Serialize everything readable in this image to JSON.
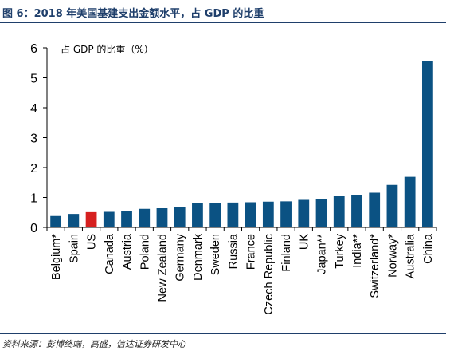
{
  "figure": {
    "title": "图 6：2018 年美国基建支出金额水平，占 GDP 的比重",
    "source": "资料来源：彭博终端，高盛，信达证券研发中心"
  },
  "chart_data": {
    "type": "bar",
    "title": "",
    "xlabel": "",
    "ylabel": "",
    "annotation": "占 GDP 的比重（%）",
    "categories": [
      "Belgium*",
      "Spain",
      "US",
      "Canada",
      "Austria",
      "Poland",
      "New Zealand",
      "Germany",
      "Denmark",
      "Sweden",
      "Russia",
      "France",
      "Czech Republic",
      "Finland",
      "UK",
      "Japan**",
      "Turkey",
      "India**",
      "Switzerland*",
      "Norway*",
      "Australia",
      "China"
    ],
    "values": [
      0.38,
      0.45,
      0.51,
      0.52,
      0.55,
      0.62,
      0.64,
      0.67,
      0.8,
      0.82,
      0.83,
      0.84,
      0.86,
      0.87,
      0.92,
      0.96,
      1.04,
      1.07,
      1.16,
      1.42,
      1.69,
      5.56
    ],
    "highlight_category": "US",
    "yticks": [
      0,
      1,
      2,
      3,
      4,
      5,
      6
    ],
    "ylim": [
      0,
      6
    ],
    "grid": false,
    "colors": {
      "bar": "#0b5283",
      "highlight": "#d6201f",
      "axis": "#000000"
    }
  }
}
